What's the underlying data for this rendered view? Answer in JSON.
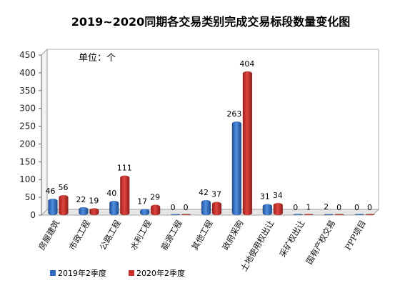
{
  "chart_data": {
    "type": "bar",
    "title": "2019~2020同期各交易类别完成交易标段数量变化图",
    "unit_label": "单位：个",
    "categories": [
      "房屋建筑",
      "市政工程",
      "公路工程",
      "水利工程",
      "能源工程",
      "其他工程",
      "政府采购",
      "土地使用权出让",
      "采矿权出让",
      "国有产权交易",
      "PPP项目"
    ],
    "series": [
      {
        "name": "2019年2季度",
        "values": [
          46,
          22,
          40,
          17,
          0,
          42,
          263,
          31,
          0,
          2,
          0
        ],
        "color": "#2e6bbf"
      },
      {
        "name": "2020年2季度",
        "values": [
          56,
          19,
          111,
          29,
          0,
          37,
          404,
          34,
          1,
          0,
          0
        ],
        "color": "#c9302c"
      }
    ],
    "ylim": [
      0,
      450
    ],
    "yticks": [
      0,
      50,
      100,
      150,
      200,
      250,
      300,
      350,
      400,
      450
    ],
    "grid": false,
    "legend": "bottom-left"
  }
}
